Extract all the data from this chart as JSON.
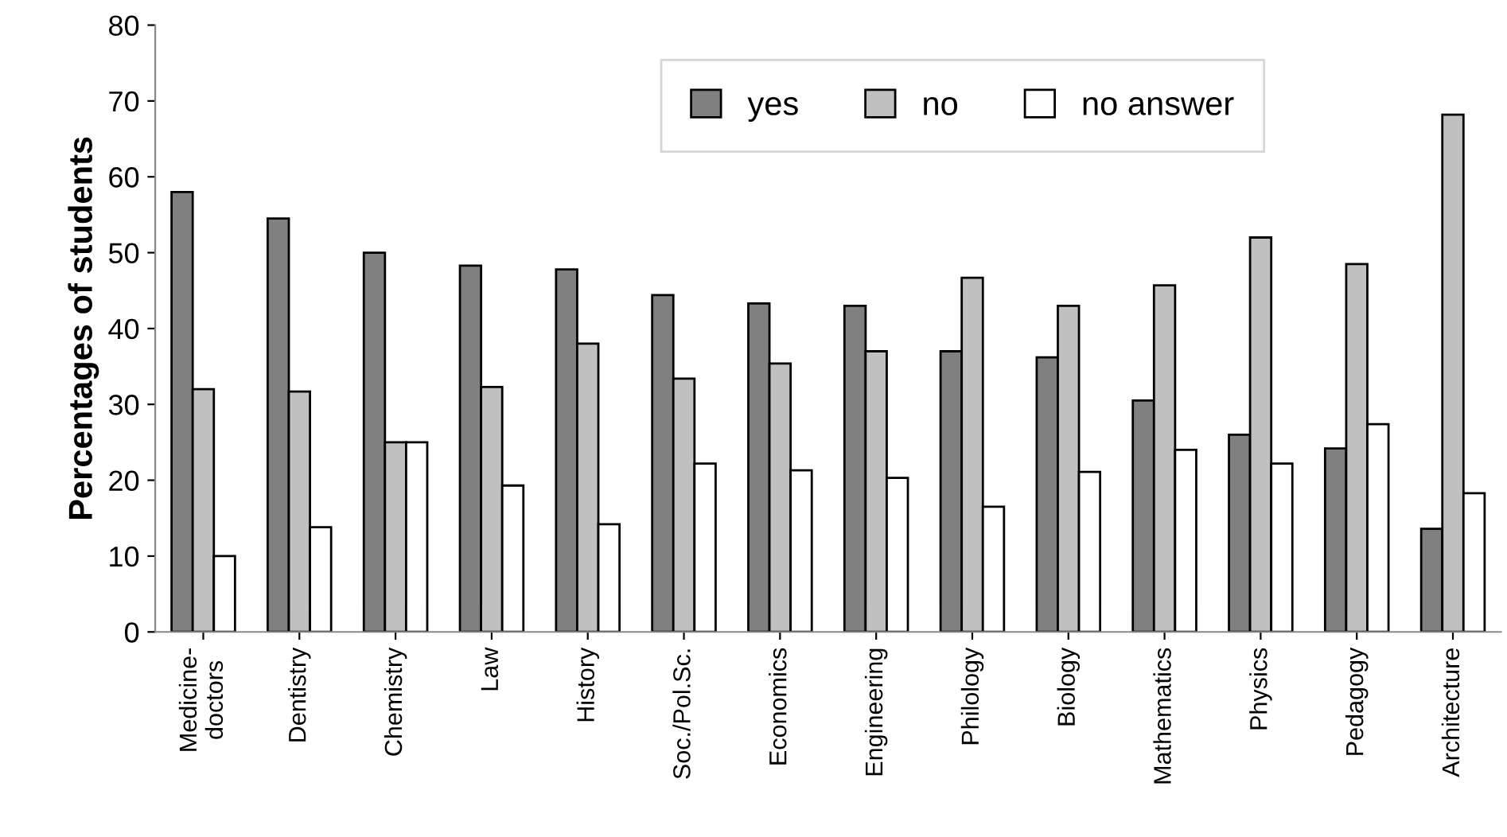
{
  "chart_data": {
    "type": "bar",
    "ylabel": "Percentages of students",
    "categories": [
      "Medicine-\ndoctors",
      "Dentistry",
      "Chemistry",
      "Law",
      "History",
      "Soc./Pol.Sc.",
      "Economics",
      "Engineering",
      "Philology",
      "Biology",
      "Mathematics",
      "Physics",
      "Pedagogy",
      "Architecture"
    ],
    "series": [
      {
        "name": "yes",
        "color": "#808080",
        "values": [
          58,
          54.5,
          50,
          48.3,
          47.8,
          44.4,
          43.3,
          43,
          37,
          36.2,
          30.5,
          26,
          24.2,
          13.6
        ]
      },
      {
        "name": "no",
        "color": "#c0c0c0",
        "values": [
          32,
          31.7,
          25,
          32.3,
          38,
          33.4,
          35.4,
          37,
          46.7,
          43,
          45.7,
          52,
          48.5,
          68.2
        ]
      },
      {
        "name": "no answer",
        "color": "#ffffff",
        "values": [
          10,
          13.8,
          25,
          19.3,
          14.2,
          22.2,
          21.3,
          20.3,
          16.5,
          21.1,
          24,
          22.2,
          27.4,
          18.3
        ]
      }
    ],
    "ylim": [
      0,
      80
    ],
    "yticks": [
      0,
      10,
      20,
      30,
      40,
      50,
      60,
      70,
      80
    ],
    "grid": false,
    "legend": "top"
  }
}
